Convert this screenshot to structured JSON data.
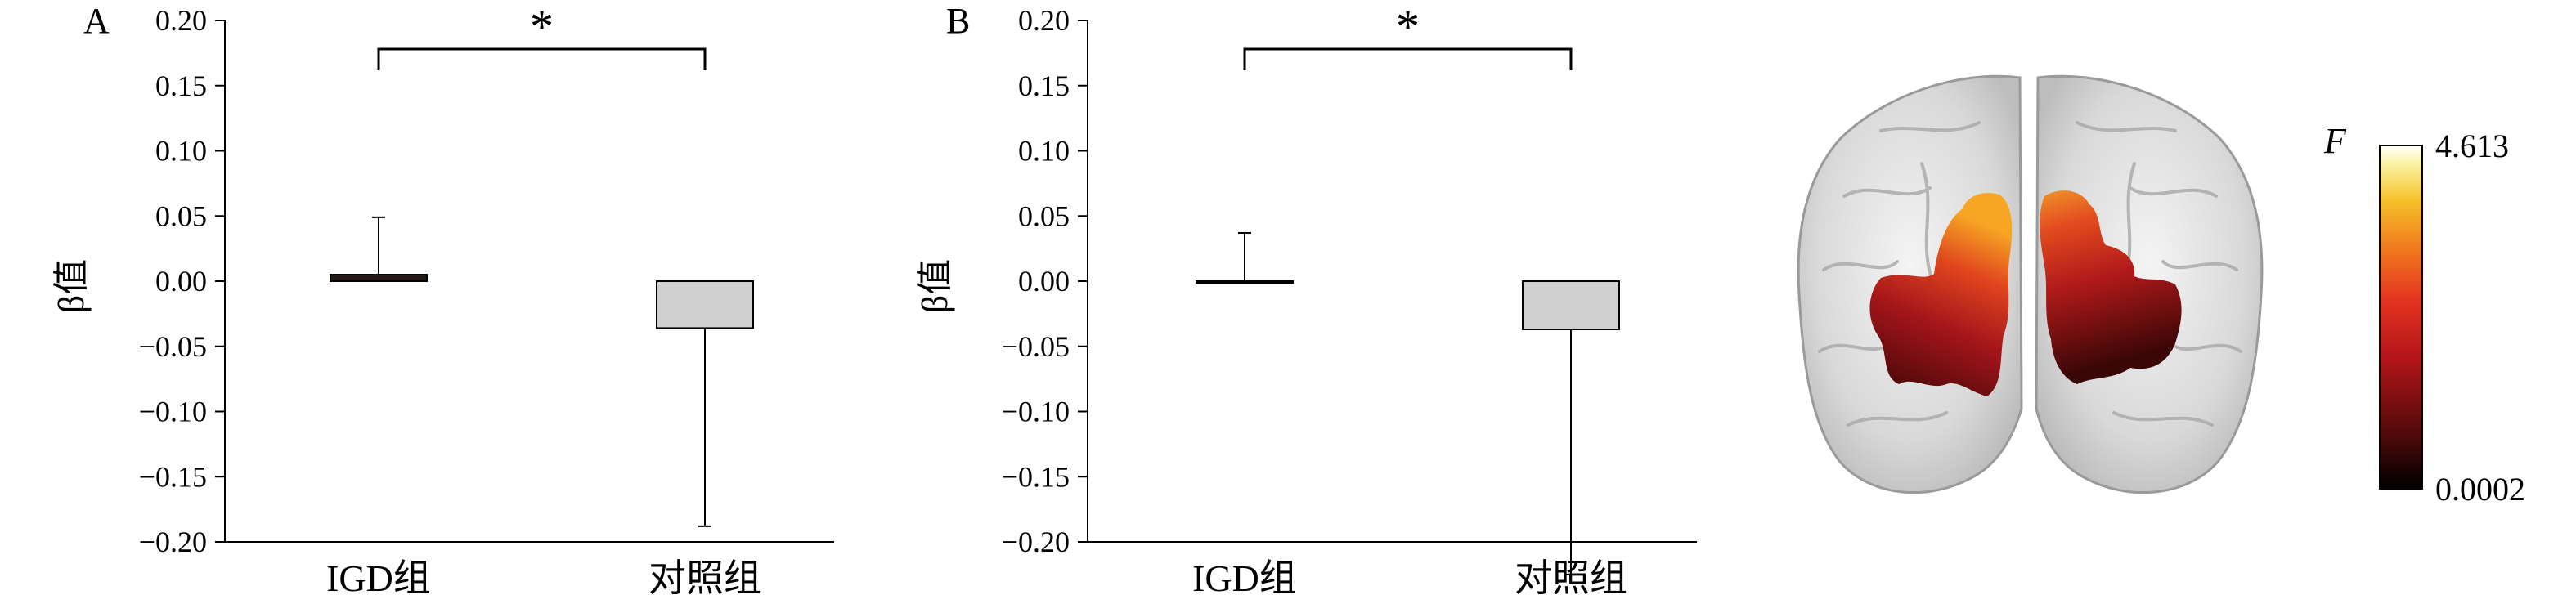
{
  "chart_data": [
    {
      "type": "bar",
      "panel_label": "A",
      "categories": [
        "IGD组",
        "对照组"
      ],
      "values": [
        0.005,
        -0.036
      ],
      "error_bars": [
        0.044,
        0.152
      ],
      "bar_colors": [
        "#231815",
        "#cfcfcf"
      ],
      "ylabel": "β值",
      "ylim": [
        -0.2,
        0.2
      ],
      "yticks": [
        0.2,
        0.15,
        0.1,
        0.05,
        0.0,
        -0.05,
        -0.1,
        -0.15,
        -0.2
      ],
      "ytick_labels": [
        "0.20",
        "0.15",
        "0.10",
        "0.05",
        "0.00",
        "−0.05",
        "−0.10",
        "−0.15",
        "−0.20"
      ],
      "significance": "*"
    },
    {
      "type": "bar",
      "panel_label": "B",
      "categories": [
        "IGD组",
        "对照组"
      ],
      "values": [
        0.0,
        -0.037
      ],
      "error_bars": [
        0.037,
        0.188
      ],
      "bar_colors": [
        "#231815",
        "#cfcfcf"
      ],
      "ylabel": "β值",
      "ylim": [
        -0.2,
        0.2
      ],
      "yticks": [
        0.2,
        0.15,
        0.1,
        0.05,
        0.0,
        -0.05,
        -0.1,
        -0.15,
        -0.2
      ],
      "ytick_labels": [
        "0.20",
        "0.15",
        "0.10",
        "0.05",
        "0.00",
        "−0.05",
        "−0.10",
        "−0.15",
        "−0.20"
      ],
      "significance": "*"
    }
  ],
  "brain_map": {
    "colorbar_label": "F",
    "colorbar_max": "4.613",
    "colorbar_min": "0.0002",
    "colormap": [
      "#000000",
      "#5a0b0b",
      "#b3151a",
      "#e3341f",
      "#f07a1e",
      "#f7c12a",
      "#fbf4a8",
      "#ffffff"
    ]
  }
}
